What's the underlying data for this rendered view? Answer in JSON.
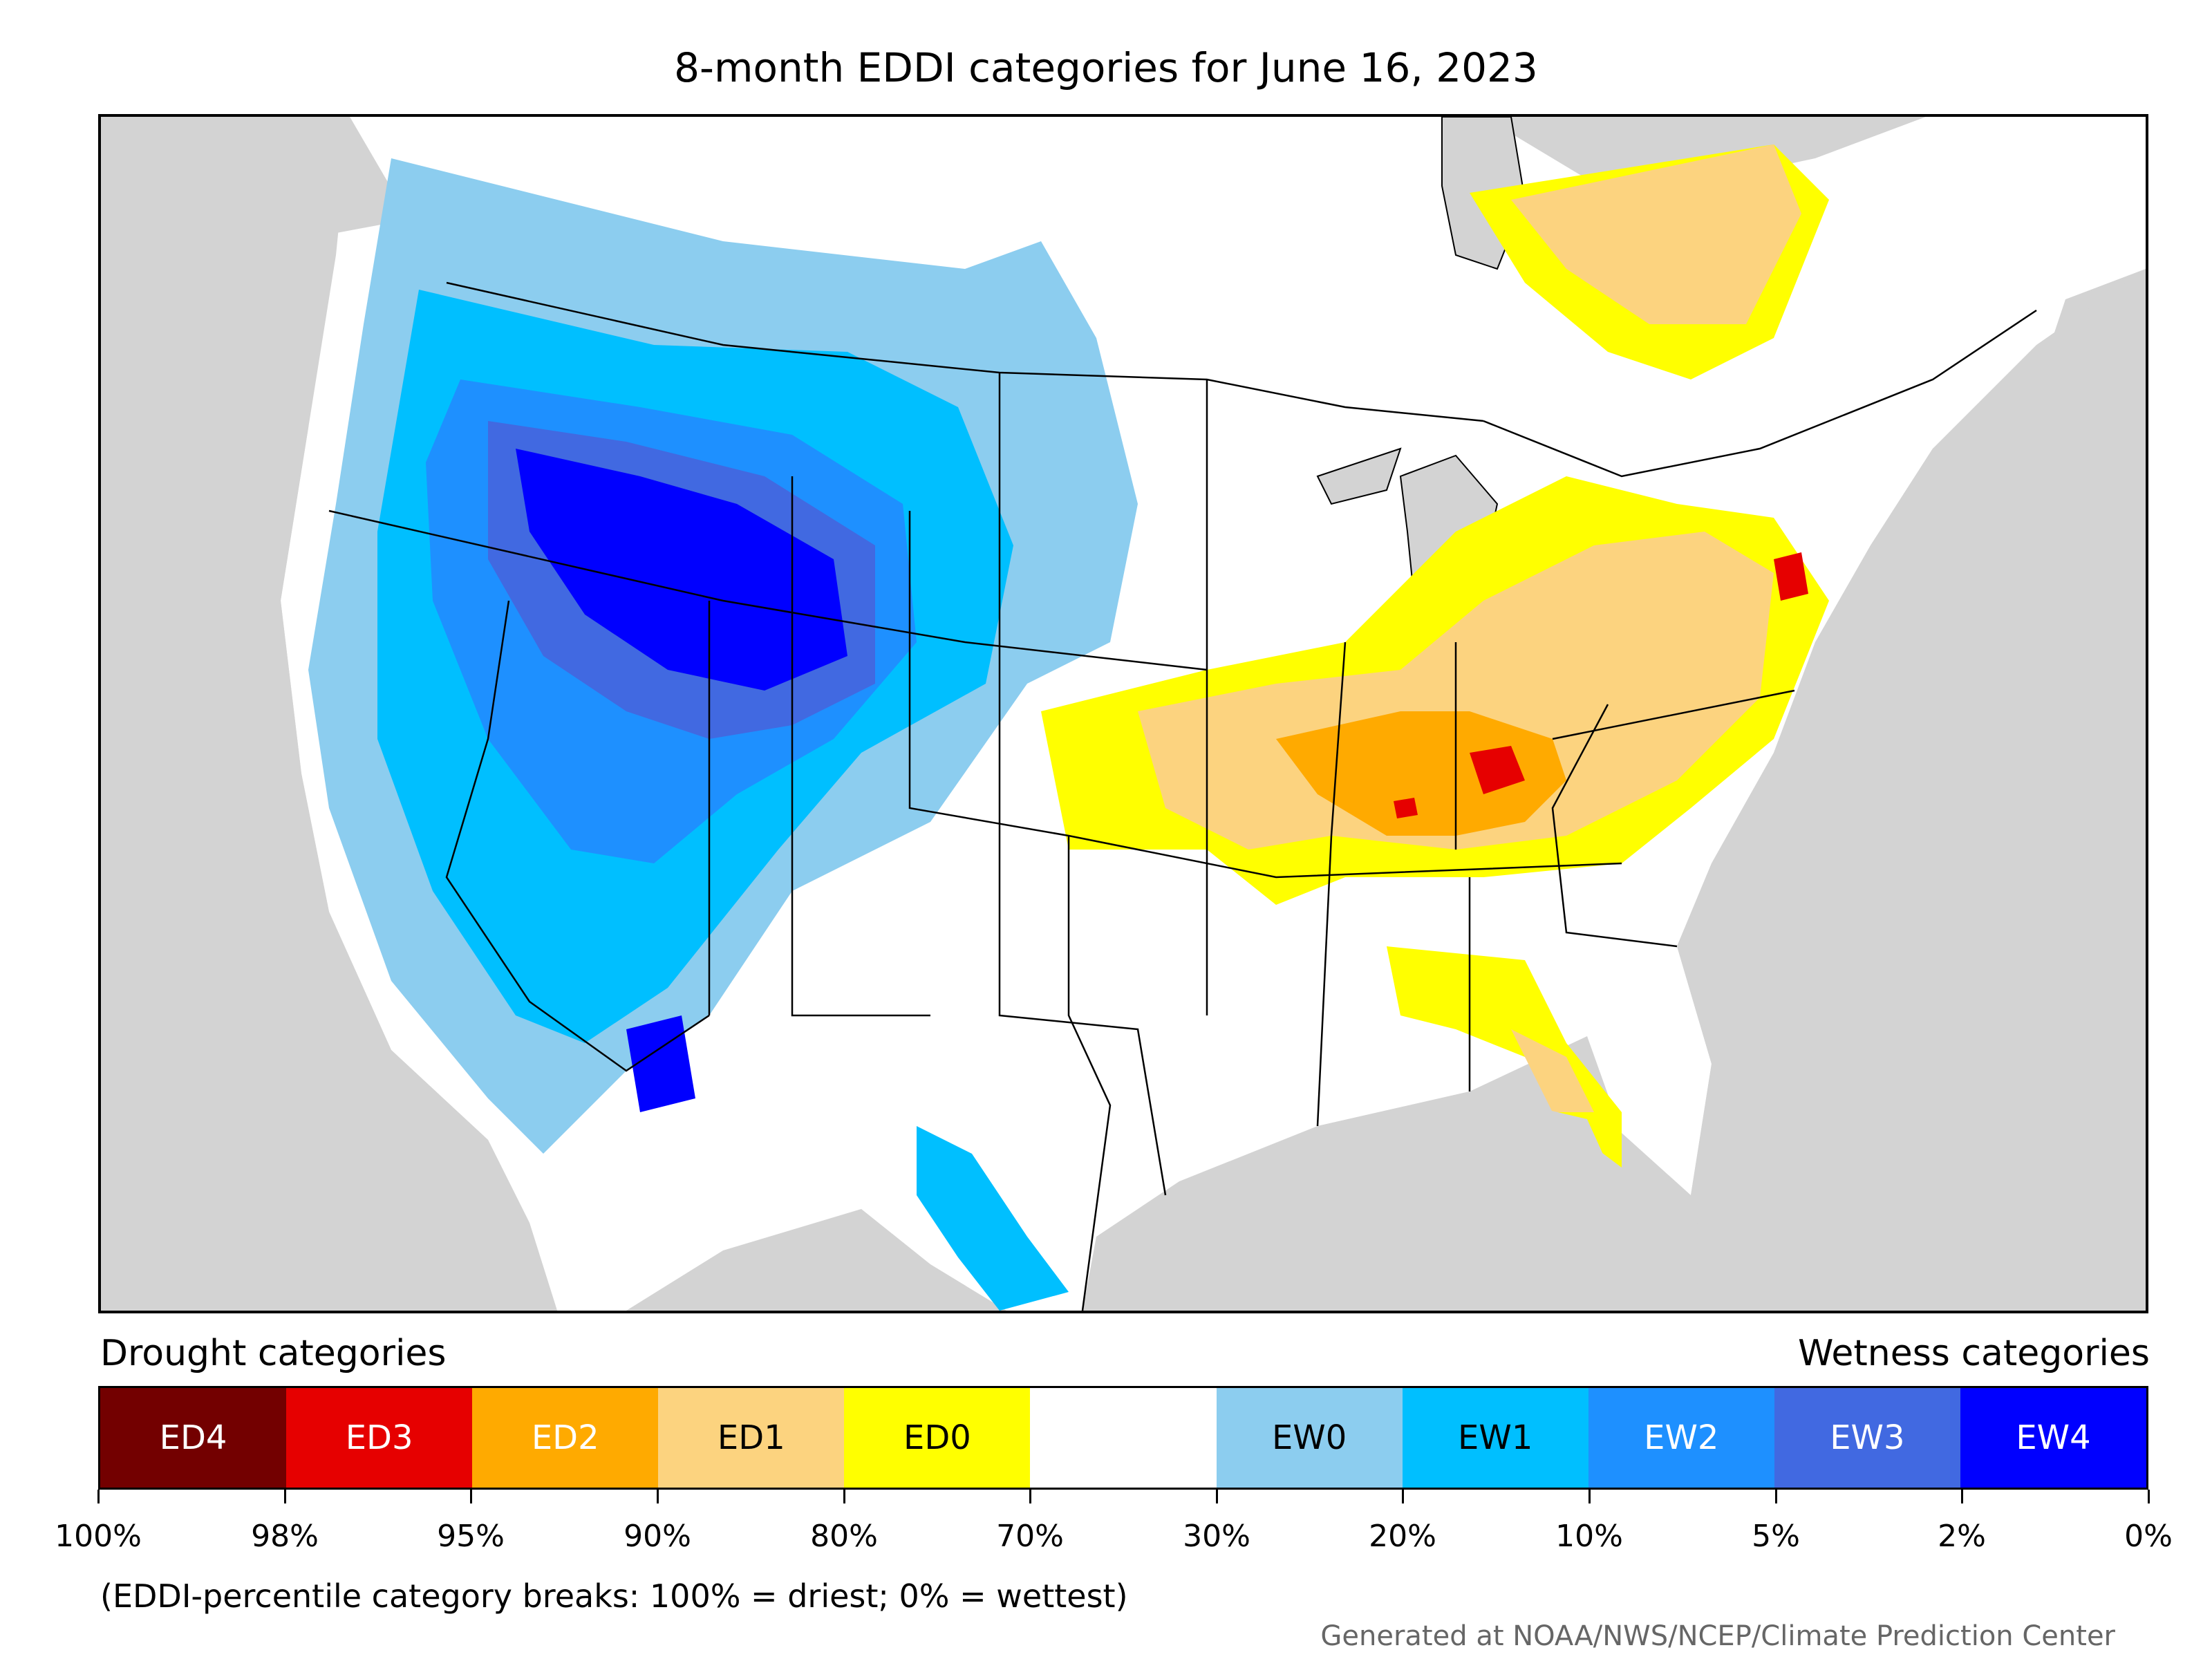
{
  "title": "8-month EDDI categories for June 16, 2023",
  "legend": {
    "drought_heading": "Drought categories",
    "wetness_heading": "Wetness categories",
    "categories": [
      {
        "label": "ED4",
        "color": "#730000",
        "text_color": "#ffffff"
      },
      {
        "label": "ED3",
        "color": "#e60000",
        "text_color": "#ffffff"
      },
      {
        "label": "ED2",
        "color": "#ffaa00",
        "text_color": "#ffffff"
      },
      {
        "label": "ED1",
        "color": "#fcd37f",
        "text_color": "#000000"
      },
      {
        "label": "ED0",
        "color": "#ffff00",
        "text_color": "#000000"
      },
      {
        "label": "",
        "color": "#ffffff",
        "text_color": "#000000"
      },
      {
        "label": "EW0",
        "color": "#8ccdef",
        "text_color": "#000000"
      },
      {
        "label": "EW1",
        "color": "#00bfff",
        "text_color": "#000000"
      },
      {
        "label": "EW2",
        "color": "#1e90ff",
        "text_color": "#ffffff"
      },
      {
        "label": "EW3",
        "color": "#4169e1",
        "text_color": "#ffffff"
      },
      {
        "label": "EW4",
        "color": "#0000ff",
        "text_color": "#ffffff"
      }
    ],
    "breaks": [
      "100%",
      "98%",
      "95%",
      "90%",
      "80%",
      "70%",
      "30%",
      "20%",
      "10%",
      "5%",
      "2%",
      "0%"
    ]
  },
  "note": "(EDDI-percentile category breaks: 100% = driest; 0% = wettest)",
  "credit": "Generated at NOAA/NWS/NCEP/Climate Prediction Center"
}
